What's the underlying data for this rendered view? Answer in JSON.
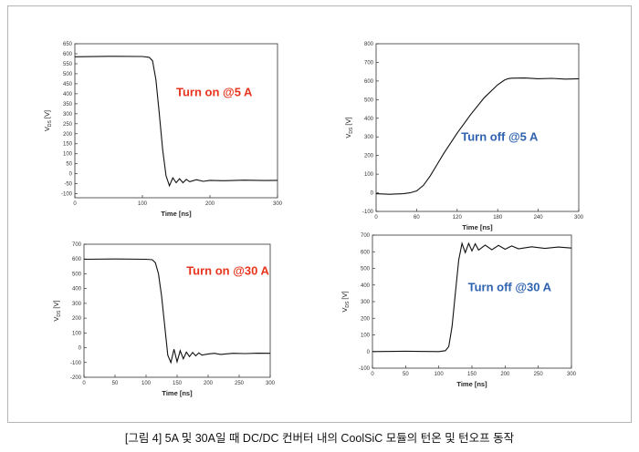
{
  "caption": "[그림 4] 5A 및 30A일 때 DC/DC 컨버터 내의 CoolSiC 모듈의 턴온 및 턴오프 동작",
  "chart_data": [
    {
      "type": "line",
      "annotation": "Turn on @5 A",
      "annotation_color": "#e8341c",
      "xlabel": "Time [ns]",
      "ylabel_main": "V",
      "ylabel_sub": "DS",
      "ylabel_unit": "[V]",
      "xlim": [
        0,
        300
      ],
      "ylim": [
        -120,
        650
      ],
      "xticks": [
        0,
        100,
        200,
        300
      ],
      "yticks": [
        -100,
        -50,
        0,
        50,
        100,
        150,
        200,
        250,
        300,
        350,
        400,
        450,
        500,
        550,
        600,
        650
      ],
      "series": [
        {
          "x": [
            0,
            50,
            100,
            110,
            115,
            120,
            125,
            130,
            135,
            140,
            145,
            150,
            155,
            160,
            165,
            170,
            180,
            190,
            200,
            220,
            250,
            280,
            300
          ],
          "y": [
            585,
            587,
            586,
            582,
            565,
            470,
            300,
            120,
            -10,
            -60,
            -20,
            -45,
            -25,
            -45,
            -28,
            -40,
            -30,
            -38,
            -33,
            -35,
            -32,
            -34,
            -33
          ]
        }
      ]
    },
    {
      "type": "line",
      "annotation": "Turn off @5 A",
      "annotation_color": "#2f62b0",
      "xlabel": "Time [ns]",
      "ylabel_main": "V",
      "ylabel_sub": "DS",
      "ylabel_unit": "[V]",
      "xlim": [
        0,
        300
      ],
      "ylim": [
        -100,
        800
      ],
      "xticks": [
        0,
        60,
        120,
        180,
        240,
        300
      ],
      "yticks": [
        -100,
        0,
        100,
        200,
        300,
        400,
        500,
        600,
        700,
        800
      ],
      "series": [
        {
          "x": [
            0,
            20,
            40,
            50,
            60,
            70,
            80,
            90,
            100,
            120,
            140,
            160,
            180,
            190,
            195,
            200,
            220,
            240,
            260,
            280,
            300
          ],
          "y": [
            -5,
            -8,
            -5,
            0,
            10,
            40,
            90,
            150,
            210,
            320,
            420,
            510,
            580,
            605,
            612,
            615,
            616,
            612,
            614,
            610,
            612
          ]
        }
      ]
    },
    {
      "type": "line",
      "annotation": "Turn on @30 A",
      "annotation_color": "#e8341c",
      "xlabel": "Time [ns]",
      "ylabel_main": "V",
      "ylabel_sub": "DS",
      "ylabel_unit": "[V]",
      "xlim": [
        0,
        300
      ],
      "ylim": [
        -200,
        700
      ],
      "xticks": [
        0,
        50,
        100,
        150,
        200,
        250,
        300
      ],
      "yticks": [
        -200,
        -100,
        0,
        100,
        200,
        300,
        400,
        500,
        600,
        700
      ],
      "series": [
        {
          "x": [
            0,
            50,
            100,
            110,
            115,
            120,
            125,
            130,
            135,
            140,
            145,
            150,
            155,
            160,
            165,
            170,
            175,
            180,
            185,
            190,
            200,
            210,
            220,
            240,
            260,
            280,
            300
          ],
          "y": [
            598,
            600,
            598,
            595,
            575,
            500,
            350,
            150,
            -50,
            -100,
            -10,
            -95,
            -20,
            -75,
            -30,
            -60,
            -32,
            -55,
            -35,
            -50,
            -42,
            -38,
            -45,
            -38,
            -40,
            -37,
            -38
          ]
        }
      ]
    },
    {
      "type": "line",
      "annotation": "Turn off @30 A",
      "annotation_color": "#2f62b0",
      "xlabel": "Time [ns]",
      "ylabel_main": "V",
      "ylabel_sub": "DS",
      "ylabel_unit": "[V]",
      "xlim": [
        0,
        300
      ],
      "ylim": [
        -100,
        700
      ],
      "xticks": [
        0,
        50,
        100,
        150,
        200,
        250,
        300
      ],
      "yticks": [
        -100,
        0,
        100,
        200,
        300,
        400,
        500,
        600,
        700
      ],
      "series": [
        {
          "x": [
            0,
            50,
            100,
            110,
            115,
            120,
            125,
            130,
            135,
            140,
            145,
            150,
            155,
            160,
            170,
            180,
            190,
            200,
            210,
            220,
            240,
            260,
            280,
            300
          ],
          "y": [
            0,
            2,
            0,
            5,
            30,
            150,
            350,
            550,
            650,
            595,
            650,
            605,
            648,
            610,
            640,
            612,
            638,
            615,
            635,
            618,
            630,
            620,
            628,
            622
          ]
        }
      ]
    }
  ]
}
